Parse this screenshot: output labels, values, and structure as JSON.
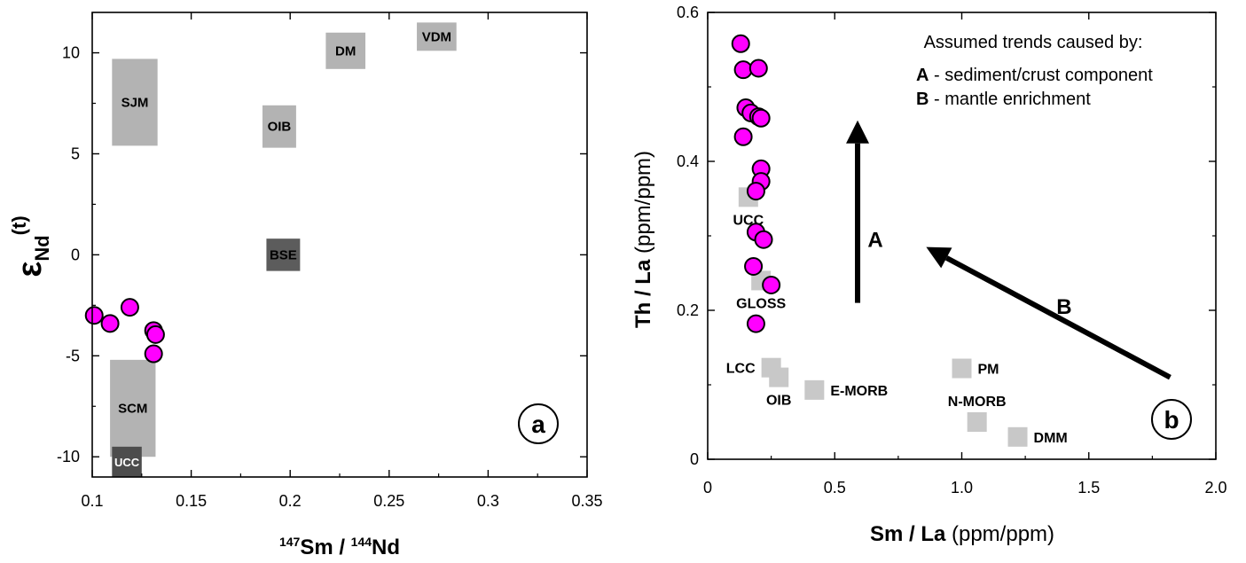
{
  "chart_data": [
    {
      "panel": "a",
      "type": "scatter",
      "xlim": [
        0.1,
        0.35
      ],
      "ylim": [
        -11,
        12
      ],
      "xticks": [
        "0.1",
        "0.15",
        "0.2",
        "0.25",
        "0.3",
        "0.35"
      ],
      "yticks": [
        "10",
        "5",
        "0",
        "-5",
        "-10"
      ],
      "xlabel_parts": {
        "sup1": "147",
        "main1": "Sm / ",
        "sup2": "144",
        "main2": "Nd"
      },
      "ylabel_parts": {
        "greek": "ε",
        "sub": "Nd",
        "sup": "(t)"
      },
      "fields": [
        {
          "label": "SJM",
          "x": [
            0.11,
            0.133
          ],
          "y": [
            5.4,
            9.7
          ],
          "color": "#b3b3b3",
          "light": false
        },
        {
          "label": "OIB",
          "x": [
            0.186,
            0.203
          ],
          "y": [
            5.3,
            7.4
          ],
          "color": "#b3b3b3",
          "light": false
        },
        {
          "label": "DM",
          "x": [
            0.218,
            0.238
          ],
          "y": [
            9.2,
            11.0
          ],
          "color": "#b3b3b3",
          "light": false
        },
        {
          "label": "VDM",
          "x": [
            0.264,
            0.284
          ],
          "y": [
            10.1,
            11.5
          ],
          "color": "#b3b3b3",
          "light": false
        },
        {
          "label": "BSE",
          "x": [
            0.188,
            0.205
          ],
          "y": [
            -0.8,
            0.8
          ],
          "color": "#5c5c5c",
          "light": false
        },
        {
          "label": "SCM",
          "x": [
            0.109,
            0.132
          ],
          "y": [
            -10.0,
            -5.2
          ],
          "color": "#b3b3b3",
          "light": false
        },
        {
          "label": "UCC",
          "x": [
            0.11,
            0.125
          ],
          "y": [
            -11.0,
            -9.5
          ],
          "color": "#4d4d4d",
          "light": true
        }
      ],
      "points": [
        {
          "x": 0.101,
          "y": -3.0
        },
        {
          "x": 0.109,
          "y": -3.4
        },
        {
          "x": 0.119,
          "y": -2.6
        },
        {
          "x": 0.131,
          "y": -3.75
        },
        {
          "x": 0.132,
          "y": -3.95
        },
        {
          "x": 0.131,
          "y": -4.9
        }
      ],
      "panel_label": "a"
    },
    {
      "panel": "b",
      "type": "scatter",
      "xlim": [
        0,
        2.0
      ],
      "ylim": [
        0,
        0.6
      ],
      "xticks": [
        "0",
        "0.5",
        "1.0",
        "1.5",
        "2.0"
      ],
      "yticks": [
        "0",
        "0.2",
        "0.4",
        "0.6"
      ],
      "xlabel_bold": "Sm / La",
      "xlabel_units": " (ppm/ppm)",
      "ylabel_bold": "Th / La",
      "ylabel_units": " (ppm/ppm)",
      "points": [
        {
          "x": 0.13,
          "y": 0.558
        },
        {
          "x": 0.14,
          "y": 0.523
        },
        {
          "x": 0.2,
          "y": 0.525
        },
        {
          "x": 0.15,
          "y": 0.472
        },
        {
          "x": 0.17,
          "y": 0.465
        },
        {
          "x": 0.2,
          "y": 0.46
        },
        {
          "x": 0.21,
          "y": 0.458
        },
        {
          "x": 0.14,
          "y": 0.433
        },
        {
          "x": 0.21,
          "y": 0.39
        },
        {
          "x": 0.21,
          "y": 0.373
        },
        {
          "x": 0.19,
          "y": 0.36
        },
        {
          "x": 0.19,
          "y": 0.305
        },
        {
          "x": 0.22,
          "y": 0.295
        },
        {
          "x": 0.18,
          "y": 0.259
        },
        {
          "x": 0.25,
          "y": 0.234
        },
        {
          "x": 0.19,
          "y": 0.182
        }
      ],
      "reference": [
        {
          "label": "UCC",
          "x": 0.16,
          "y": 0.352,
          "label_pos": "below"
        },
        {
          "label": "GLOSS",
          "x": 0.21,
          "y": 0.24,
          "label_pos": "below"
        },
        {
          "label": "LCC",
          "x": 0.25,
          "y": 0.123,
          "label_pos": "left"
        },
        {
          "label": "OIB",
          "x": 0.28,
          "y": 0.11,
          "label_pos": "below"
        },
        {
          "label": "E-MORB",
          "x": 0.42,
          "y": 0.093,
          "label_pos": "right"
        },
        {
          "label": "PM",
          "x": 1.0,
          "y": 0.122,
          "label_pos": "right"
        },
        {
          "label": "N-MORB",
          "x": 1.06,
          "y": 0.05,
          "label_pos": "above"
        },
        {
          "label": "DMM",
          "x": 1.22,
          "y": 0.03,
          "label_pos": "right"
        }
      ],
      "arrows": [
        {
          "label": "A",
          "from": [
            0.59,
            0.21
          ],
          "to": [
            0.59,
            0.455
          ]
        },
        {
          "label": "B",
          "from": [
            1.82,
            0.11
          ],
          "to": [
            0.86,
            0.285
          ]
        }
      ],
      "annotation": {
        "title": "Assumed trends caused by:",
        "items": [
          {
            "key": "A",
            "text": " - sediment/crust component"
          },
          {
            "key": "B",
            "text": " - mantle enrichment"
          }
        ]
      },
      "panel_label": "b"
    }
  ],
  "style": {
    "point_fill": "#ff00ff",
    "point_stroke": "#000000",
    "reference_fill": "#c8c8c8"
  }
}
